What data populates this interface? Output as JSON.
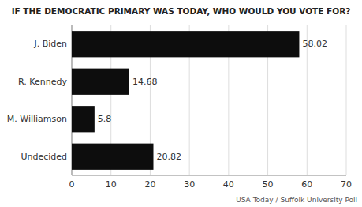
{
  "chart_data": {
    "type": "bar",
    "orientation": "horizontal",
    "title": "IF THE DEMOCRATIC PRIMARY WAS TODAY, WHO WOULD YOU VOTE FOR?",
    "categories": [
      "J. Biden",
      "R. Kennedy",
      "M. Williamson",
      "Undecided"
    ],
    "values": [
      58.02,
      14.68,
      5.8,
      20.82
    ],
    "color": "#0d0d0d",
    "xlim": [
      0,
      70
    ],
    "xticks": [
      0,
      10,
      20,
      30,
      40,
      50,
      60,
      70
    ],
    "grid": true,
    "data_labels": true,
    "annotations": [
      "USA Today / Suffolk University Poll"
    ]
  }
}
